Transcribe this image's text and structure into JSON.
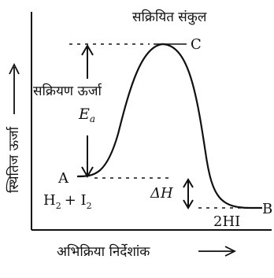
{
  "diagram": {
    "title_top": "सक्रियित संकुल",
    "point_c": "C",
    "activation_label": "सक्रियण ऊर्जा",
    "ea_symbol": "E",
    "ea_subscript": "a",
    "point_a": "A",
    "reactants_h": "H",
    "reactants_h_sub": "2",
    "reactants_plus_i": "+ I",
    "reactants_i_sub": "2",
    "delta_h": "ΔH",
    "product_label": "2HI",
    "point_b": "B",
    "y_axis_label": "स्थितिज ऊर्जा",
    "x_axis_label": "अभिक्रिया निर्देशांक"
  },
  "colors": {
    "ink": "#111111",
    "background": "#ffffff"
  }
}
